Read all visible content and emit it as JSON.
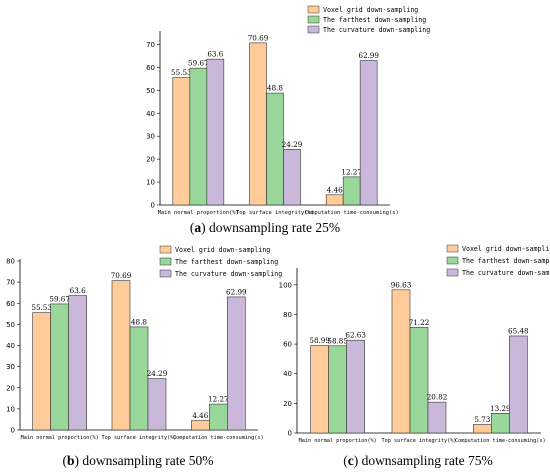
{
  "colors": {
    "series": [
      "#FFCC99",
      "#99D699",
      "#C9B8DA"
    ],
    "stroke": "#333333"
  },
  "chart_data": [
    {
      "type": "bar",
      "panel_letter": "a",
      "caption": "downsampling rate 25%",
      "categories": [
        "Main normal proportion(%)",
        "Top surface integrity(%)",
        "Computation time-consuming(s)"
      ],
      "series": [
        {
          "name": "Voxel grid down-sampling",
          "values": [
            55.53,
            70.69,
            4.46
          ]
        },
        {
          "name": "The farthest down-sampling",
          "values": [
            59.67,
            48.8,
            12.27
          ]
        },
        {
          "name": "The curvature down-sampling",
          "values": [
            63.6,
            24.29,
            62.99
          ]
        }
      ],
      "ylim": [
        0,
        75
      ],
      "yticks": [
        0,
        10,
        20,
        30,
        40,
        50,
        60,
        70
      ],
      "legend": "top-right",
      "grid": false
    },
    {
      "type": "bar",
      "panel_letter": "b",
      "caption": "downsampling rate 50%",
      "categories": [
        "Main normal proportion(%)",
        "Top surface integrity(%)",
        "Computation time-consuming(s)"
      ],
      "series": [
        {
          "name": "Voxel grid down-sampling",
          "values": [
            55.53,
            70.69,
            4.46
          ]
        },
        {
          "name": "The farthest down-sampling",
          "values": [
            59.67,
            48.8,
            12.27
          ]
        },
        {
          "name": "The curvature down-sampling",
          "values": [
            63.6,
            24.29,
            62.99
          ]
        }
      ],
      "ylim": [
        0,
        80
      ],
      "yticks": [
        0,
        10,
        20,
        30,
        40,
        50,
        60,
        70,
        80
      ],
      "legend": "top-right",
      "grid": false
    },
    {
      "type": "bar",
      "panel_letter": "c",
      "caption": "downsampling rate 75%",
      "categories": [
        "Main normal proportion(%)",
        "Top surface integrity(%)",
        "Computation time-consuming(s)"
      ],
      "series": [
        {
          "name": "Voxel grid down-sampling",
          "values": [
            58.99,
            96.63,
            5.73
          ]
        },
        {
          "name": "The farthest down-sampling",
          "values": [
            58.85,
            71.22,
            13.29
          ]
        },
        {
          "name": "The curvature down-sampling",
          "values": [
            62.63,
            20.82,
            65.48
          ]
        }
      ],
      "ylim": [
        0,
        110
      ],
      "yticks": [
        0,
        20,
        40,
        60,
        80,
        100
      ],
      "legend": "top-right",
      "grid": false
    }
  ]
}
